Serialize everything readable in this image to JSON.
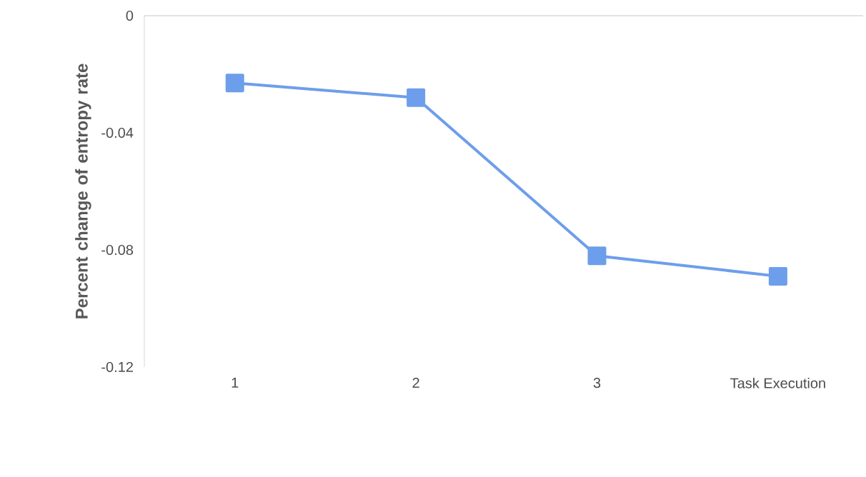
{
  "chart_data": {
    "type": "line",
    "ylabel": "Percent change of entropy rate",
    "categories": [
      "1",
      "2",
      "3",
      "Task Execution"
    ],
    "series": [
      {
        "color": "#6d9eeb",
        "values": [
          -0.023,
          -0.028,
          -0.082,
          -0.089
        ]
      }
    ],
    "ylim": [
      -0.12,
      0
    ],
    "yticks": [
      -0.12,
      -0.08,
      -0.04,
      0
    ],
    "marker": "square",
    "line_style": "solid",
    "grid": false
  }
}
